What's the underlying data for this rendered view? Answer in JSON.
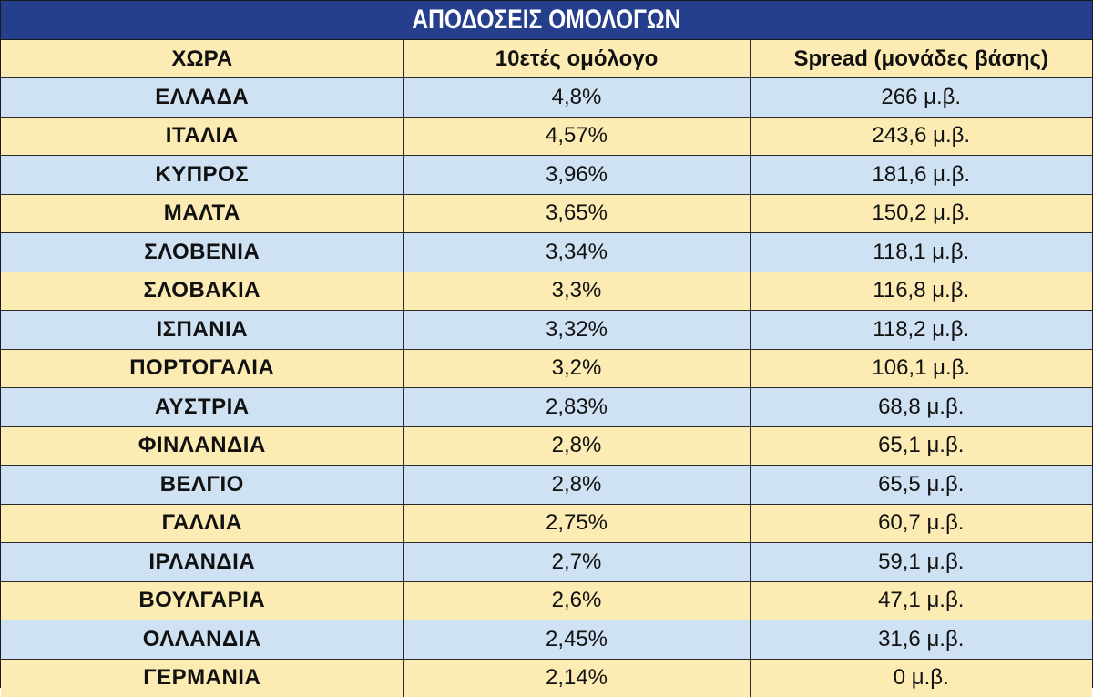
{
  "title": "ΑΠΟΔΟΣΕΙΣ ΟΜΟΛΟΓΩΝ",
  "colors": {
    "title_bg": "#253f8c",
    "title_text": "#ffffff",
    "row_blue": "#cfe2f3",
    "row_yellow": "#fcecb3"
  },
  "chart_data": {
    "type": "table",
    "title": "ΑΠΟΔΟΣΕΙΣ ΟΜΟΛΟΓΩΝ",
    "columns": [
      "ΧΩΡΑ",
      "10ετές ομόλογο",
      "Spread (μονάδες βάσης)"
    ],
    "rows": [
      [
        "ΕΛΛΑΔΑ",
        "4,8%",
        "266 μ.β."
      ],
      [
        "ΙΤΑΛΙΑ",
        "4,57%",
        "243,6 μ.β."
      ],
      [
        "ΚΥΠΡΟΣ",
        "3,96%",
        "181,6 μ.β."
      ],
      [
        "ΜΑΛΤΑ",
        "3,65%",
        "150,2 μ.β."
      ],
      [
        "ΣΛΟΒΕΝΙΑ",
        "3,34%",
        "118,1 μ.β."
      ],
      [
        "ΣΛΟΒΑΚΙΑ",
        "3,3%",
        "116,8 μ.β."
      ],
      [
        "ΙΣΠΑΝΙΑ",
        "3,32%",
        "118,2 μ.β."
      ],
      [
        "ΠΟΡΤΟΓΑΛΙΑ",
        "3,2%",
        "106,1 μ.β."
      ],
      [
        "ΑΥΣΤΡΙΑ",
        "2,83%",
        "68,8 μ.β."
      ],
      [
        "ΦΙΝΛΑΝΔΙΑ",
        "2,8%",
        "65,1 μ.β."
      ],
      [
        "ΒΕΛΓΙΟ",
        "2,8%",
        "65,5 μ.β."
      ],
      [
        "ΓΑΛΛΙΑ",
        "2,75%",
        "60,7 μ.β."
      ],
      [
        "ΙΡΛΑΝΔΙΑ",
        "2,7%",
        "59,1 μ.β."
      ],
      [
        "ΒΟΥΛΓΑΡΙΑ",
        "2,6%",
        "47,1 μ.β."
      ],
      [
        "ΟΛΛΑΝΔΙΑ",
        "2,45%",
        "31,6 μ.β."
      ],
      [
        "ΓΕΡΜΑΝΙΑ",
        "2,14%",
        "0 μ.β."
      ]
    ]
  }
}
